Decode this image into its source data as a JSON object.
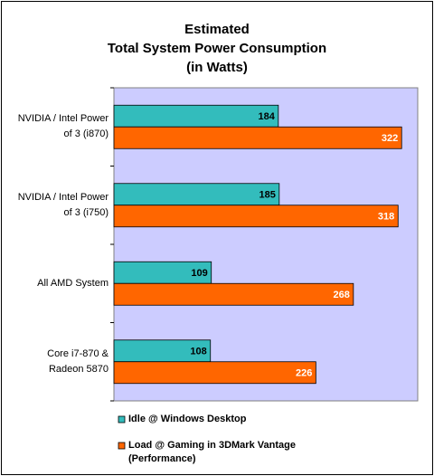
{
  "chart_data": {
    "type": "bar",
    "orientation": "horizontal",
    "title": "Estimated\nTotal System Power Consumption\n(in Watts)",
    "categories": [
      "NVIDIA / Intel Power\nof 3 (i870)",
      "NVIDIA / Intel Power\nof 3 (i750)",
      "All AMD System",
      "Core i7-870 &\nRadeon 5870"
    ],
    "series": [
      {
        "name": "Idle @ Windows Desktop",
        "color": "#33bcbc",
        "values": [
          184,
          185,
          109,
          108
        ]
      },
      {
        "name": "Load @ Gaming in 3DMark Vantage\n(Performance)",
        "color": "#ff6600",
        "values": [
          322,
          318,
          268,
          226
        ]
      }
    ],
    "xlim": [
      0,
      340
    ],
    "legend": "bottom"
  }
}
